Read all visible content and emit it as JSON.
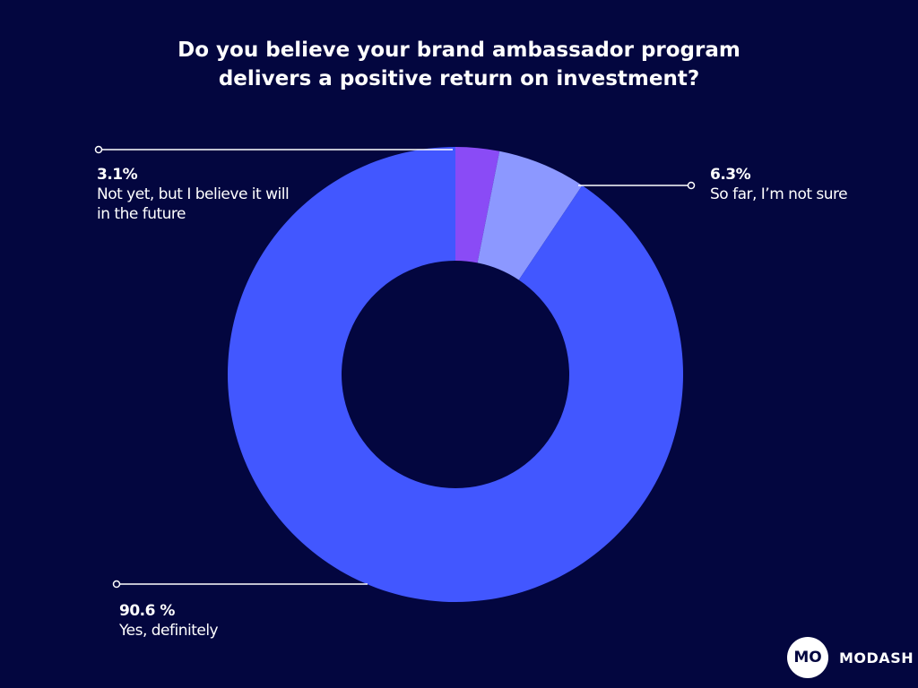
{
  "chart_data": {
    "type": "donut",
    "title": "Do you believe your brand ambassador program delivers a positive return on investment?",
    "categories": [
      "Not yet, but I believe it will in the future",
      "So far, I’m not sure",
      "Yes, definitely"
    ],
    "values": [
      3.1,
      6.3,
      90.6
    ],
    "value_labels": [
      "3.1%",
      "6.3%",
      "90.6 %"
    ],
    "colors": [
      "#8a4bf6",
      "#8c98ff",
      "#4257ff"
    ]
  },
  "brand": {
    "mark": "MO",
    "name": "MODASH"
  }
}
